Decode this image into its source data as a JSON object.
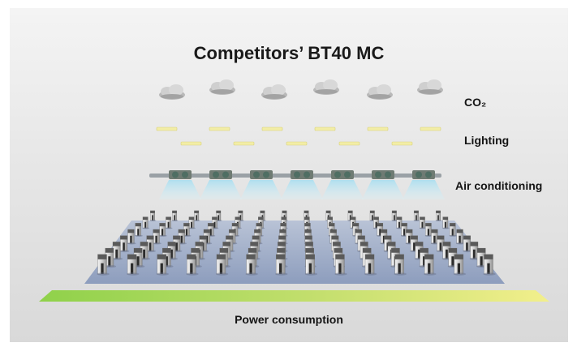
{
  "title": "Competitors’ BT40 MC",
  "labels": {
    "co2": "CO₂",
    "lighting": "Lighting",
    "air_conditioning": "Air conditioning",
    "power_consumption": "Power consumption"
  },
  "icons": {
    "cloud": "cloud-icon",
    "lamp": "lamp-icon",
    "ac_unit": "ac-unit-icon",
    "machine": "machine-tool-icon"
  },
  "colors": {
    "background": "#e6e6e6",
    "title": "#1a1a1a",
    "lamp": "#f2eda6",
    "ac_airflow": "#bfe6f2",
    "floor": "#9aaac8",
    "power_bar_start": "#8fd14a",
    "power_bar_end": "#f2ef8c"
  }
}
